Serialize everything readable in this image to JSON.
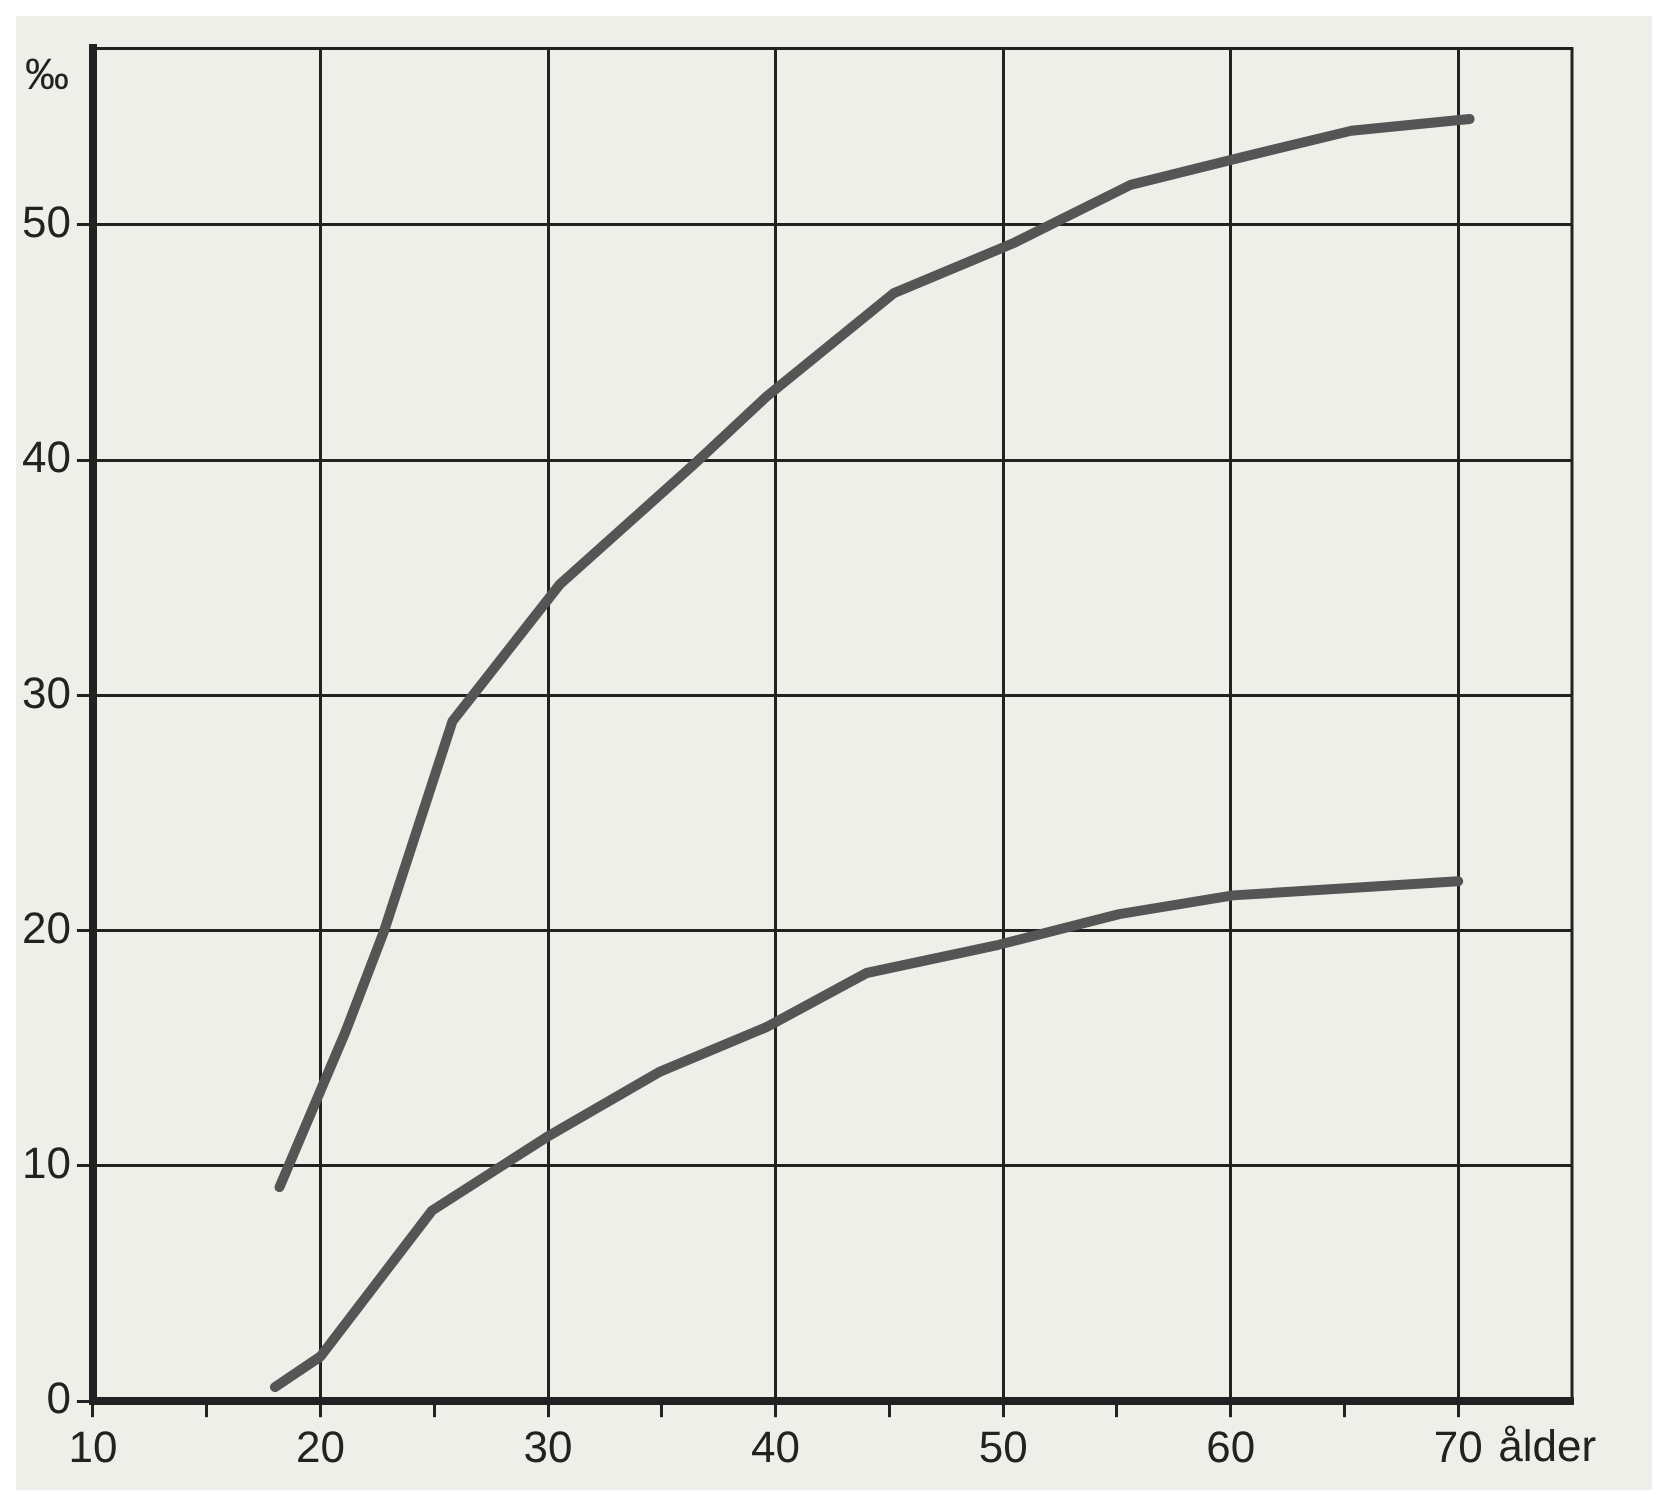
{
  "chart_data": {
    "type": "line",
    "xlabel": "ålder",
    "ylabel": "‰",
    "xlim": [
      10,
      75
    ],
    "ylim": [
      0,
      57.5
    ],
    "xticks": [
      10,
      {
        "value": 15,
        "label": null
      },
      20,
      {
        "value": 25,
        "label": null
      },
      30,
      {
        "value": 35,
        "label": null
      },
      40,
      {
        "value": 45,
        "label": null
      },
      50,
      {
        "value": 55,
        "label": null
      },
      60,
      {
        "value": 65,
        "label": null
      },
      70
    ],
    "yticks": [
      0,
      10,
      20,
      30,
      40,
      50
    ],
    "grid": true,
    "legend": false,
    "marker": "none",
    "line_style": "solid",
    "series": [
      {
        "color": "#555555",
        "x": [
          18.2,
          21.1,
          22.8,
          25.8,
          30.5,
          36.5,
          39.6,
          45.2,
          50.4,
          55.6,
          60.6,
          65.3,
          70.5
        ],
        "values": [
          9.1,
          15.7,
          20,
          28.9,
          34.7,
          39.9,
          42.7,
          47.1,
          49.2,
          51.7,
          52.9,
          54,
          54.5
        ]
      },
      {
        "color": "#555555",
        "x": [
          18,
          20,
          24.9,
          29.9,
          34.9,
          39.6,
          44,
          49.8,
          55.1,
          60.1,
          70
        ],
        "values": [
          0.6,
          1.9,
          8.1,
          11.2,
          14,
          15.9,
          18.2,
          19.4,
          20.7,
          21.5,
          22.1
        ]
      }
    ]
  }
}
